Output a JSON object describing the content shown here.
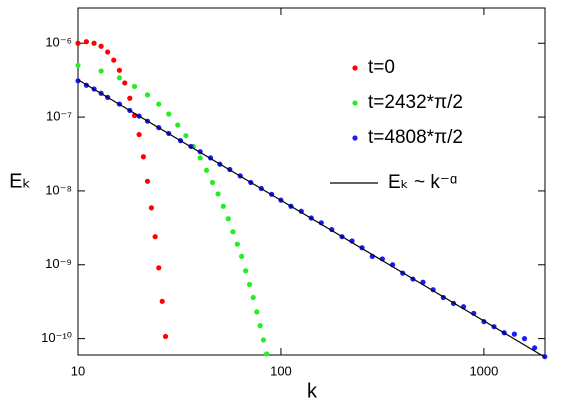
{
  "chart_data": {
    "type": "scatter",
    "xscale": "log",
    "yscale": "log",
    "x_label": "k",
    "y_label": "Eₖ",
    "xlim": [
      10,
      2000
    ],
    "ylim": [
      6e-11,
      3e-06
    ],
    "xticks": [
      10,
      100,
      1000
    ],
    "yticks": [
      {
        "value": 1e-10,
        "label": "10⁻¹⁰"
      },
      {
        "value": 1e-09,
        "label": "10⁻⁹"
      },
      {
        "value": 1e-08,
        "label": "10⁻⁸"
      },
      {
        "value": 1e-07,
        "label": "10⁻⁷"
      },
      {
        "value": 1e-06,
        "label": "10⁻⁶"
      }
    ],
    "legend": "upper right",
    "series": [
      {
        "name": "t=0",
        "color": "#ff0000",
        "style": "dots",
        "x": [
          10,
          11,
          12,
          13,
          14,
          15,
          16,
          17,
          18,
          19,
          20,
          21,
          22,
          23,
          24,
          25,
          26,
          27
        ],
        "values": [
          1e-06,
          1.05e-06,
          1e-06,
          9.1e-07,
          7.6e-07,
          5.9e-07,
          4.3e-07,
          2.9e-07,
          1.8e-07,
          1.05e-07,
          5.8e-08,
          2.9e-08,
          1.35e-08,
          5.9e-09,
          2.4e-09,
          9.1e-10,
          3.2e-10,
          1.07e-10
        ]
      },
      {
        "name": "t=2432*π/2",
        "color": "#22ee22",
        "style": "dots",
        "x": [
          10,
          13,
          16,
          19,
          22,
          25,
          28,
          31,
          34,
          37,
          40,
          43,
          46,
          49,
          52,
          55,
          58,
          61,
          64,
          67,
          70,
          73,
          76,
          79,
          82,
          85
        ],
        "values": [
          5e-07,
          4.2e-07,
          3.4e-07,
          2.6e-07,
          2e-07,
          1.5e-07,
          1.1e-07,
          7.8e-08,
          5.6e-08,
          4e-08,
          2.8e-08,
          1.9e-08,
          1.3e-08,
          9.1e-09,
          6.2e-09,
          4.2e-09,
          2.8e-09,
          1.9e-09,
          1.3e-09,
          8.3e-10,
          5.4e-10,
          3.6e-10,
          2.3e-10,
          1.5e-10,
          9.6e-11,
          6.2e-11
        ]
      },
      {
        "name": "t=4808*π/2",
        "color": "#1a1aff",
        "style": "dots",
        "x": [
          10,
          11,
          12,
          13,
          14,
          16,
          18,
          20,
          22,
          25,
          28,
          32,
          36,
          40,
          45,
          50,
          56,
          63,
          71,
          80,
          90,
          100,
          112,
          126,
          141,
          158,
          178,
          200,
          224,
          251,
          282,
          316,
          355,
          398,
          447,
          501,
          562,
          631,
          708,
          794,
          891,
          1000,
          1122,
          1259,
          1413,
          1585,
          1778,
          1995
        ],
        "values": [
          3.1e-07,
          2.7e-07,
          2.4e-07,
          2.1e-07,
          1.85e-07,
          1.5e-07,
          1.23e-07,
          1.03e-07,
          8.8e-08,
          7.2e-08,
          6e-08,
          4.8e-08,
          4e-08,
          3.4e-08,
          2.8e-08,
          2.3e-08,
          1.95e-08,
          1.6e-08,
          1.3e-08,
          1.08e-08,
          9e-09,
          7.5e-09,
          6.2e-09,
          5.3e-09,
          4.3e-09,
          3.7e-09,
          3e-09,
          2.4e-09,
          2.1e-09,
          1.7e-09,
          1.3e-09,
          1.2e-09,
          1e-09,
          7.7e-10,
          6.4e-10,
          5.8e-10,
          4.6e-10,
          3.6e-10,
          3e-10,
          2.7e-10,
          2.2e-10,
          1.7e-10,
          1.45e-10,
          1.2e-10,
          1.15e-10,
          1e-10,
          7.5e-11,
          5.7e-11
        ]
      },
      {
        "name": "Eₖ ~ k⁻ᵅ",
        "color": "#000000",
        "style": "line",
        "x": [
          10,
          2000
        ],
        "values": [
          3.2e-07,
          5.6e-11
        ]
      }
    ]
  }
}
